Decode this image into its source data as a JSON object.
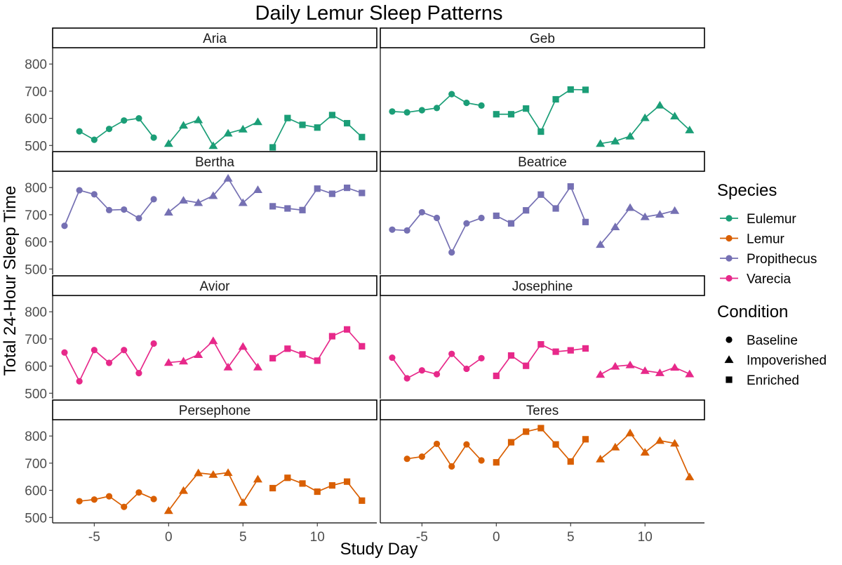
{
  "chart_data": {
    "type": "line",
    "title": "Daily Lemur Sleep Patterns",
    "xlabel": "Study Day",
    "ylabel": "Total 24-Hour Sleep Time",
    "xlim": [
      -7.8,
      14
    ],
    "ylim": [
      480,
      860
    ],
    "xticks": [
      -5,
      0,
      5,
      10
    ],
    "yticks": [
      500,
      600,
      700,
      800
    ],
    "x_tick_labels": [
      "-5",
      "0",
      "5",
      "10"
    ],
    "y_tick_labels": [
      "500",
      "600",
      "700",
      "800"
    ],
    "species_legend": {
      "title": "Species",
      "items": [
        {
          "label": "Eulemur",
          "color": "#1b9e77"
        },
        {
          "label": "Lemur",
          "color": "#d95f02"
        },
        {
          "label": "Propithecus",
          "color": "#7570b3"
        },
        {
          "label": "Varecia",
          "color": "#e7298a"
        }
      ]
    },
    "condition_legend": {
      "title": "Condition",
      "items": [
        {
          "label": "Baseline",
          "shape": "circle"
        },
        {
          "label": "Impoverished",
          "shape": "triangle"
        },
        {
          "label": "Enriched",
          "shape": "square"
        }
      ]
    },
    "panels": [
      {
        "name": "Aria",
        "species": "Eulemur",
        "color": "#1b9e77",
        "segments": [
          {
            "condition": "Baseline",
            "shape": "circle",
            "x": [
              -6,
              -5,
              -4,
              -3,
              -2,
              -1
            ],
            "y": [
              552,
              521,
              561,
              592,
              600,
              529
            ]
          },
          {
            "condition": "Impoverished",
            "shape": "triangle",
            "x": [
              0,
              1,
              2,
              3,
              4,
              5,
              6
            ],
            "y": [
              507,
              574,
              594,
              499,
              545,
              560,
              587
            ]
          },
          {
            "condition": "Enriched",
            "shape": "square",
            "x": [
              7,
              8,
              9,
              10,
              11,
              12,
              13
            ],
            "y": [
              493,
              601,
              576,
              566,
              612,
              582,
              531
            ]
          }
        ]
      },
      {
        "name": "Geb",
        "species": "Eulemur",
        "color": "#1b9e77",
        "segments": [
          {
            "condition": "Baseline",
            "shape": "circle",
            "x": [
              -7,
              -6,
              -5,
              -4,
              -3,
              -2,
              -1
            ],
            "y": [
              625,
              622,
              630,
              638,
              689,
              657,
              647
            ]
          },
          {
            "condition": "Enriched",
            "shape": "square",
            "x": [
              0,
              1,
              2,
              3,
              4,
              5,
              6
            ],
            "y": [
              615,
              615,
              636,
              551,
              670,
              706,
              705
            ]
          },
          {
            "condition": "Impoverished",
            "shape": "triangle",
            "x": [
              7,
              8,
              9,
              10,
              11,
              12,
              13
            ],
            "y": [
              507,
              516,
              534,
              602,
              648,
              608,
              557
            ]
          }
        ]
      },
      {
        "name": "Bertha",
        "species": "Propithecus",
        "color": "#7570b3",
        "segments": [
          {
            "condition": "Baseline",
            "shape": "circle",
            "x": [
              -7,
              -6,
              -5,
              -4,
              -3,
              -2,
              -1
            ],
            "y": [
              659,
              790,
              775,
              717,
              719,
              687,
              757
            ]
          },
          {
            "condition": "Impoverished",
            "shape": "triangle",
            "x": [
              0,
              1,
              2,
              3,
              4,
              5,
              6
            ],
            "y": [
              709,
              753,
              744,
              770,
              834,
              744,
              792
            ]
          },
          {
            "condition": "Enriched",
            "shape": "square",
            "x": [
              7,
              8,
              9,
              10,
              11,
              12,
              13
            ],
            "y": [
              731,
              723,
              717,
              796,
              777,
              799,
              780
            ]
          }
        ]
      },
      {
        "name": "Beatrice",
        "species": "Propithecus",
        "color": "#7570b3",
        "segments": [
          {
            "condition": "Baseline",
            "shape": "circle",
            "x": [
              -7,
              -6,
              -5,
              -4,
              -3,
              -2,
              -1
            ],
            "y": [
              645,
              642,
              709,
              688,
              561,
              668,
              688
            ]
          },
          {
            "condition": "Enriched",
            "shape": "square",
            "x": [
              0,
              1,
              2,
              3,
              4,
              5,
              6
            ],
            "y": [
              696,
              668,
              716,
              774,
              723,
              804,
              673
            ]
          },
          {
            "condition": "Impoverished",
            "shape": "triangle",
            "x": [
              7,
              8,
              9,
              10,
              11,
              12
            ],
            "y": [
              590,
              655,
              726,
              692,
              701,
              715
            ]
          }
        ]
      },
      {
        "name": "Avior",
        "species": "Varecia",
        "color": "#e7298a",
        "segments": [
          {
            "condition": "Baseline",
            "shape": "circle",
            "x": [
              -7,
              -6,
              -5,
              -4,
              -3,
              -2,
              -1
            ],
            "y": [
              650,
              544,
              659,
              612,
              659,
              574,
              683
            ]
          },
          {
            "condition": "Impoverished",
            "shape": "triangle",
            "x": [
              0,
              1,
              2,
              3,
              4,
              5,
              6
            ],
            "y": [
              613,
              618,
              642,
              693,
              596,
              672,
              596
            ]
          },
          {
            "condition": "Enriched",
            "shape": "square",
            "x": [
              7,
              8,
              9,
              10,
              11,
              12,
              13
            ],
            "y": [
              629,
              664,
              643,
              620,
              710,
              735,
              673
            ]
          }
        ]
      },
      {
        "name": "Josephine",
        "species": "Varecia",
        "color": "#e7298a",
        "segments": [
          {
            "condition": "Baseline",
            "shape": "circle",
            "x": [
              -7,
              -6,
              -5,
              -4,
              -3,
              -2,
              -1
            ],
            "y": [
              631,
              555,
              584,
              570,
              645,
              590,
              629
            ]
          },
          {
            "condition": "Enriched",
            "shape": "square",
            "x": [
              0,
              1,
              2,
              3,
              4,
              5,
              6
            ],
            "y": [
              564,
              639,
              601,
              680,
              653,
              658,
              665
            ]
          },
          {
            "condition": "Impoverished",
            "shape": "triangle",
            "x": [
              7,
              8,
              9,
              10,
              11,
              12,
              13
            ],
            "y": [
              569,
              599,
              604,
              583,
              575,
              595,
              571
            ]
          }
        ]
      },
      {
        "name": "Persephone",
        "species": "Lemur",
        "color": "#d95f02",
        "segments": [
          {
            "condition": "Baseline",
            "shape": "circle",
            "x": [
              -6,
              -5,
              -4,
              -3,
              -2,
              -1
            ],
            "y": [
              560,
              566,
              578,
              539,
              592,
              568
            ]
          },
          {
            "condition": "Impoverished",
            "shape": "triangle",
            "x": [
              0,
              1,
              2,
              3,
              4,
              5,
              6
            ],
            "y": [
              525,
              599,
              664,
              658,
              665,
              555,
              641
            ]
          },
          {
            "condition": "Enriched",
            "shape": "square",
            "x": [
              7,
              8,
              9,
              10,
              11,
              12,
              13
            ],
            "y": [
              608,
              646,
              625,
              595,
              618,
              632,
              562
            ]
          }
        ]
      },
      {
        "name": "Teres",
        "species": "Lemur",
        "color": "#d95f02",
        "segments": [
          {
            "condition": "Baseline",
            "shape": "circle",
            "x": [
              -6,
              -5,
              -4,
              -3,
              -2,
              -1
            ],
            "y": [
              716,
              724,
              771,
              688,
              769,
              710
            ]
          },
          {
            "condition": "Enriched",
            "shape": "square",
            "x": [
              0,
              1,
              2,
              3,
              4,
              5,
              6
            ],
            "y": [
              703,
              777,
              816,
              829,
              769,
              706,
              788
            ]
          },
          {
            "condition": "Impoverished",
            "shape": "triangle",
            "x": [
              7,
              8,
              9,
              10,
              11,
              12,
              13
            ],
            "y": [
              715,
              759,
              811,
              740,
              783,
              773,
              649
            ]
          }
        ]
      }
    ]
  }
}
